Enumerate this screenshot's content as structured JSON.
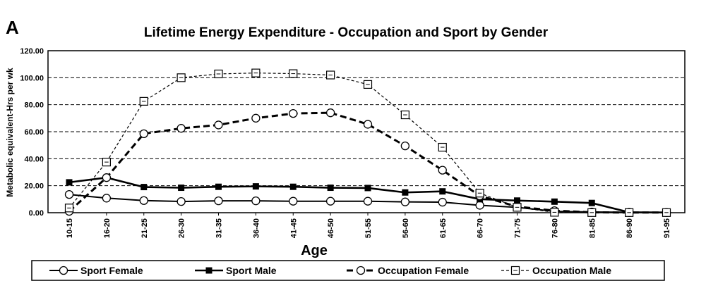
{
  "panel_label": "A",
  "chart_data": {
    "type": "line",
    "title": "Lifetime Energy Expenditure - Occupation and Sport by Gender",
    "xlabel": "Age",
    "ylabel": "Metabolic equivalent-Hrs per wk",
    "ylim": [
      0,
      120
    ],
    "yticks": [
      "0.00",
      "20.00",
      "40.00",
      "60.00",
      "80.00",
      "100.00",
      "120.00"
    ],
    "grid": "horizontal dashed",
    "legend_position": "bottom",
    "categories": [
      "10-15",
      "16-20",
      "21-25",
      "26-30",
      "31-35",
      "36-40",
      "41-45",
      "46-50",
      "51-55",
      "56-60",
      "61-65",
      "66-70",
      "71-75",
      "76-80",
      "81-85",
      "86-90",
      "91-95"
    ],
    "series": [
      {
        "name": "Sport Female",
        "style": "solid-thin",
        "marker": "open-circle",
        "color": "#000000",
        "values": [
          13.5,
          10.8,
          9.0,
          8.3,
          8.8,
          8.8,
          8.5,
          8.5,
          8.5,
          8.0,
          7.8,
          5.5,
          4.0,
          1.0,
          0.5,
          0.3,
          0.2
        ]
      },
      {
        "name": "Sport Male",
        "style": "solid-thick",
        "marker": "filled-square",
        "color": "#000000",
        "values": [
          22.5,
          26.0,
          19.0,
          18.5,
          19.2,
          19.5,
          19.2,
          18.5,
          18.3,
          15.0,
          15.8,
          10.0,
          9.0,
          8.2,
          7.2,
          0.3,
          0.2
        ]
      },
      {
        "name": "Occupation Female",
        "style": "dashed-thick",
        "marker": "open-circle",
        "color": "#000000",
        "values": [
          1.0,
          26.0,
          58.5,
          62.5,
          65.0,
          70.0,
          73.5,
          74.0,
          65.5,
          49.5,
          31.5,
          12.5,
          4.5,
          1.5,
          0.3,
          0.1,
          0.1
        ]
      },
      {
        "name": "Occupation Male",
        "style": "dashed-thin",
        "marker": "open-square",
        "color": "#000000",
        "values": [
          3.5,
          37.5,
          82.5,
          100.0,
          102.8,
          103.5,
          103.0,
          102.0,
          95.0,
          72.5,
          48.5,
          14.5,
          4.0,
          0.3,
          0.1,
          0.1,
          0.1
        ]
      }
    ]
  }
}
